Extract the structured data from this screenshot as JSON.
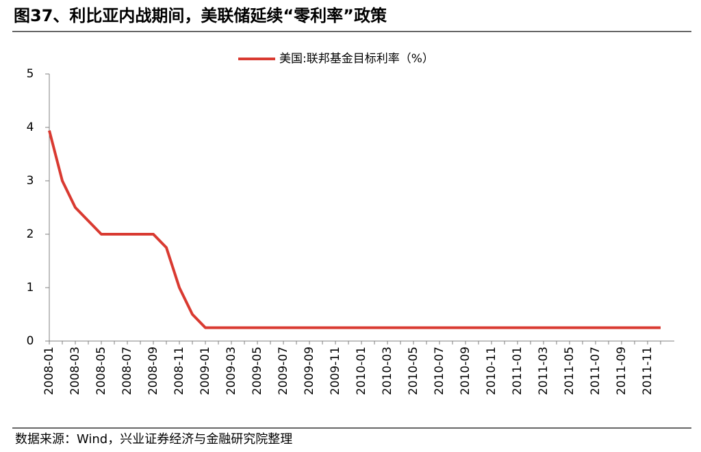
{
  "chart_data": {
    "type": "line",
    "title": "图37、利比亚内战期间，美联储延续“零利率”政策",
    "source": "数据来源：Wind，兴业证券经济与金融研究院整理",
    "categories": [
      "2008-01",
      null,
      "2008-03",
      null,
      "2008-05",
      null,
      "2008-07",
      null,
      "2008-09",
      null,
      "2008-11",
      null,
      "2009-01",
      null,
      "2009-03",
      null,
      "2009-05",
      null,
      "2009-07",
      null,
      "2009-09",
      null,
      "2009-11",
      null,
      "2010-01",
      null,
      "2010-03",
      null,
      "2010-05",
      null,
      "2010-07",
      null,
      "2010-09",
      null,
      "2010-11",
      null,
      "2011-01",
      null,
      "2011-03",
      null,
      "2011-05",
      null,
      "2011-07",
      null,
      "2011-09",
      null,
      "2011-11",
      null
    ],
    "series": [
      {
        "name": "美国:联邦基金目标利率（%）",
        "color": "#d93a31",
        "values": [
          3.94,
          3.0,
          2.5,
          2.25,
          2.0,
          2.0,
          2.0,
          2.0,
          2.0,
          1.75,
          1.0,
          0.5,
          0.25,
          0.25,
          0.25,
          0.25,
          0.25,
          0.25,
          0.25,
          0.25,
          0.25,
          0.25,
          0.25,
          0.25,
          0.25,
          0.25,
          0.25,
          0.25,
          0.25,
          0.25,
          0.25,
          0.25,
          0.25,
          0.25,
          0.25,
          0.25,
          0.25,
          0.25,
          0.25,
          0.25,
          0.25,
          0.25,
          0.25,
          0.25,
          0.25,
          0.25,
          0.25,
          0.25
        ]
      }
    ],
    "ylim": [
      0,
      5
    ],
    "yticks": [
      0,
      1,
      2,
      3,
      4,
      5
    ]
  }
}
